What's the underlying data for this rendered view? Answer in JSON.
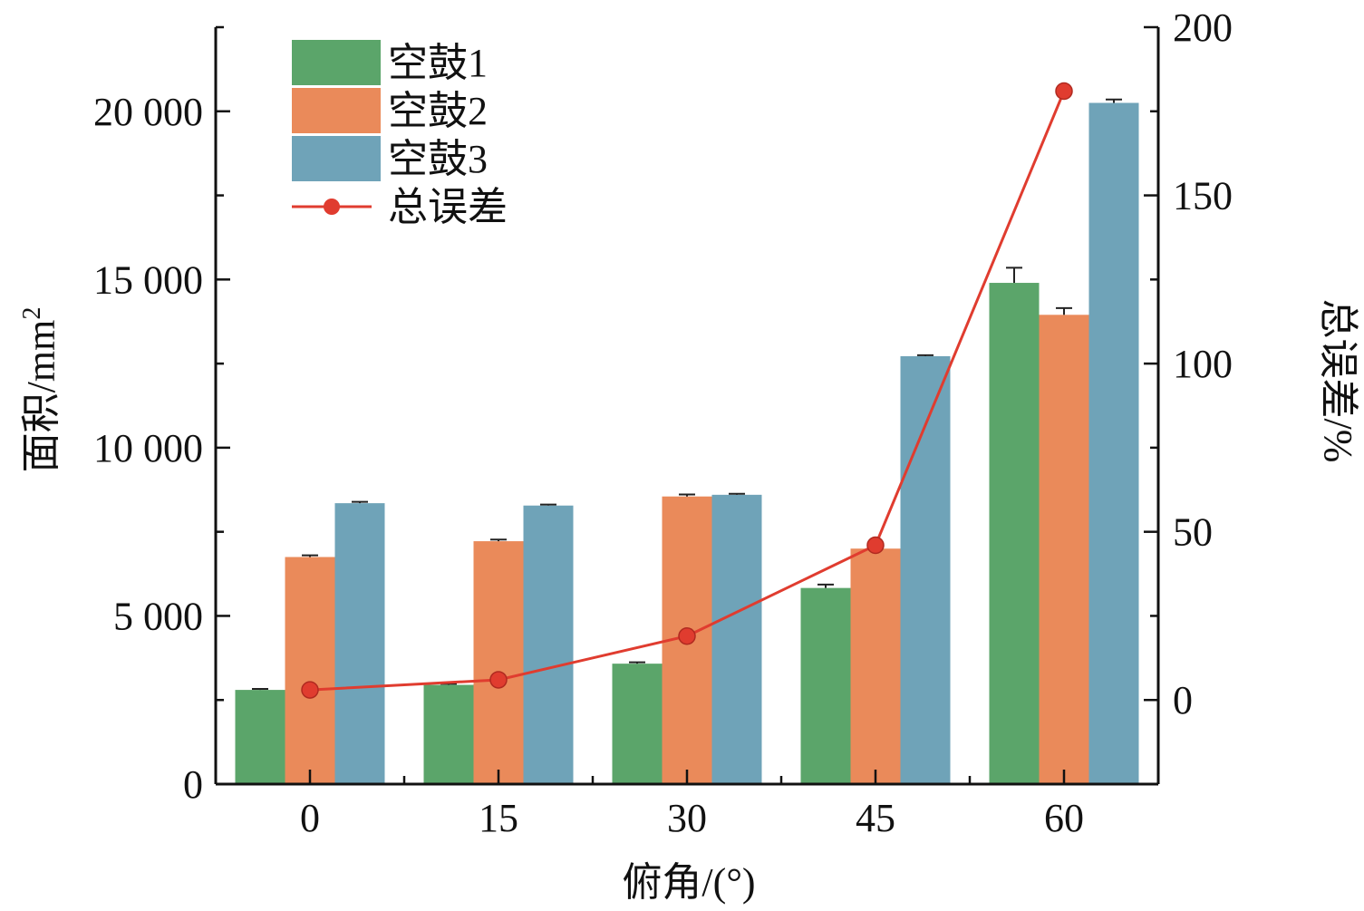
{
  "chart_data": {
    "type": "bar",
    "categories": [
      "0",
      "15",
      "30",
      "45",
      "60"
    ],
    "xlabel": "俯角/(°)",
    "ylabel": "面积/mm",
    "ylabel_sup": "2",
    "y2label": "总误差/%",
    "ylim": [
      0,
      22500
    ],
    "y2lim": [
      -25,
      200
    ],
    "yticks": [
      0,
      5000,
      10000,
      15000,
      20000
    ],
    "ytick_labels": [
      "0",
      "5 000",
      "10 000",
      "15 000",
      "20 000"
    ],
    "y2ticks": [
      0,
      50,
      100,
      150,
      200
    ],
    "y2tick_labels": [
      "0",
      "50",
      "100",
      "150",
      "200"
    ],
    "legend_position": "top-left",
    "grid": false,
    "series": [
      {
        "name": "空鼓1",
        "type": "bar",
        "color": "#5ba56a",
        "values": [
          2800,
          2950,
          3580,
          5830,
          14900
        ],
        "errors": [
          30,
          30,
          40,
          100,
          450
        ]
      },
      {
        "name": "空鼓2",
        "type": "bar",
        "color": "#ea8a5a",
        "values": [
          6750,
          7220,
          8550,
          7000,
          13950
        ],
        "errors": [
          50,
          50,
          60,
          0,
          200
        ]
      },
      {
        "name": "空鼓3",
        "type": "bar",
        "color": "#6fa3b8",
        "values": [
          8350,
          8280,
          8600,
          12720,
          20250
        ],
        "errors": [
          40,
          30,
          30,
          30,
          100
        ]
      },
      {
        "name": "总误差",
        "type": "line",
        "color": "#e03c2f",
        "axis": "right",
        "values": [
          3,
          6,
          19,
          46,
          181
        ]
      }
    ]
  }
}
